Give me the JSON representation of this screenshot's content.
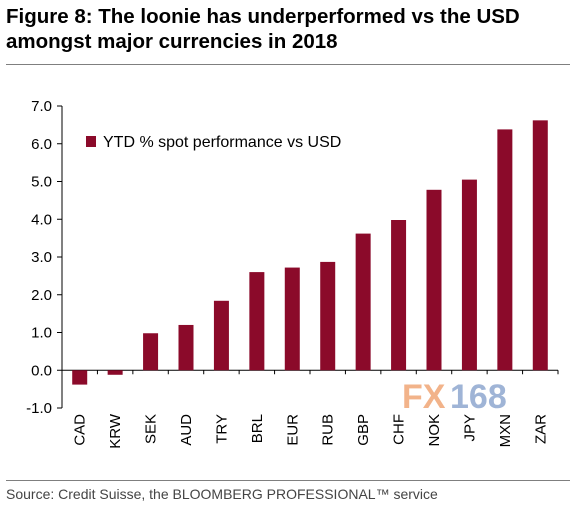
{
  "title": "Figure 8: The loonie has underperformed vs the USD amongst major currencies in 2018",
  "source": "Source: Credit Suisse, the BLOOMBERG PROFESSIONAL™ service",
  "watermark": {
    "text_fx": "FX",
    "text_num": "168",
    "color_fx": "#f2b38a",
    "color_num": "#9fb4d6"
  },
  "colors": {
    "bar": "#8b0a2a"
  },
  "chart_data": {
    "type": "bar",
    "title": "Figure 8: The loonie has underperformed vs the USD amongst major currencies in 2018",
    "xlabel": "",
    "ylabel": "",
    "ylim": [
      -1.0,
      7.0
    ],
    "yticks": [
      "7.0",
      "6.0",
      "5.0",
      "4.0",
      "3.0",
      "2.0",
      "1.0",
      "0.0",
      "-1.0"
    ],
    "ytick_values": [
      7,
      6,
      5,
      4,
      3,
      2,
      1,
      0,
      -1
    ],
    "categories": [
      "CAD",
      "KRW",
      "SEK",
      "AUD",
      "TRY",
      "BRL",
      "EUR",
      "RUB",
      "GBP",
      "CHF",
      "NOK",
      "JPY",
      "MXN",
      "ZAR"
    ],
    "series": [
      {
        "name": "YTD % spot performance vs USD",
        "values": [
          -0.38,
          -0.12,
          0.98,
          1.2,
          1.84,
          2.6,
          2.72,
          2.87,
          3.62,
          3.98,
          4.78,
          5.05,
          6.38,
          6.62
        ]
      }
    ],
    "legend_position": "top-left",
    "grid": false
  }
}
